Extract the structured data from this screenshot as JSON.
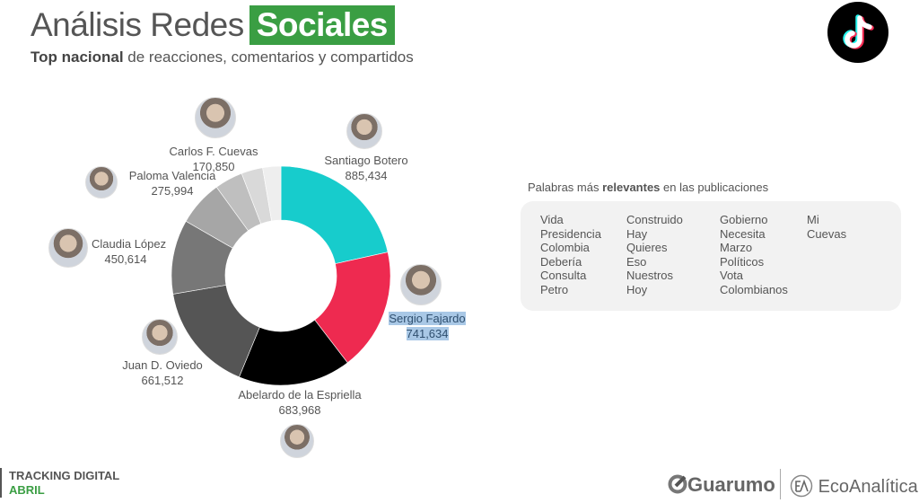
{
  "header": {
    "title_plain": "Análisis Redes",
    "title_highlight": "Sociales",
    "subtitle_bold": "Top nacional",
    "subtitle_rest": " de reacciones, comentarios y compartidos",
    "platform_icon": "tiktok-icon"
  },
  "chart_data": {
    "type": "pie",
    "variant": "donut",
    "title": "Top nacional de reacciones, comentarios y compartidos",
    "series": [
      {
        "name": "Santiago Botero",
        "value": 885434,
        "color": "#17cccc"
      },
      {
        "name": "Sergio Fajardo",
        "value": 741634,
        "color": "#ee2a50"
      },
      {
        "name": "Abelardo de la Espriella",
        "value": 683968,
        "color": "#000000"
      },
      {
        "name": "Juan D. Oviedo",
        "value": 661512,
        "color": "#555555"
      },
      {
        "name": "Claudia López",
        "value": 450614,
        "color": "#777777"
      },
      {
        "name": "Paloma Valencia",
        "value": 275994,
        "color": "#a6a6a6"
      },
      {
        "name": "Carlos F. Cuevas",
        "value": 170850,
        "color": "#bfbfbf"
      },
      {
        "name": "",
        "value": 130000,
        "color": "#d9d9d9"
      },
      {
        "name": "",
        "value": 110000,
        "color": "#eeeeee"
      }
    ],
    "labels": [
      {
        "name": "Santiago Botero",
        "value": "885,434"
      },
      {
        "name": "Sergio Fajardo",
        "value": "741,634"
      },
      {
        "name": "Abelardo de la Espriella",
        "value": "683,968"
      },
      {
        "name": "Juan D. Oviedo",
        "value": "661,512"
      },
      {
        "name": "Claudia López",
        "value": "450,614"
      },
      {
        "name": "Paloma Valencia",
        "value": "275,994"
      },
      {
        "name": "Carlos F. Cuevas",
        "value": "170,850"
      }
    ],
    "legend": "none (labels with avatars around donut)"
  },
  "words": {
    "title_pre": "Palabras más ",
    "title_bold": "relevantes",
    "title_post": " en las publicaciones",
    "columns": [
      [
        "Vida",
        "Presidencia",
        "Colombia",
        "Debería",
        "Consulta",
        "Petro"
      ],
      [
        "Construido",
        "Hay",
        "Quieres",
        "Eso",
        "Nuestros",
        "Hoy"
      ],
      [
        "Gobierno",
        "Necesita",
        "Marzo",
        "Políticos",
        "Vota",
        "Colombianos"
      ],
      [
        "Mi",
        "Cuevas"
      ]
    ]
  },
  "footer": {
    "line1": "TRACKING DIGITAL",
    "line2": "ABRIL",
    "brand1": "Guarumo",
    "brand2": "EcoAnalítica"
  }
}
